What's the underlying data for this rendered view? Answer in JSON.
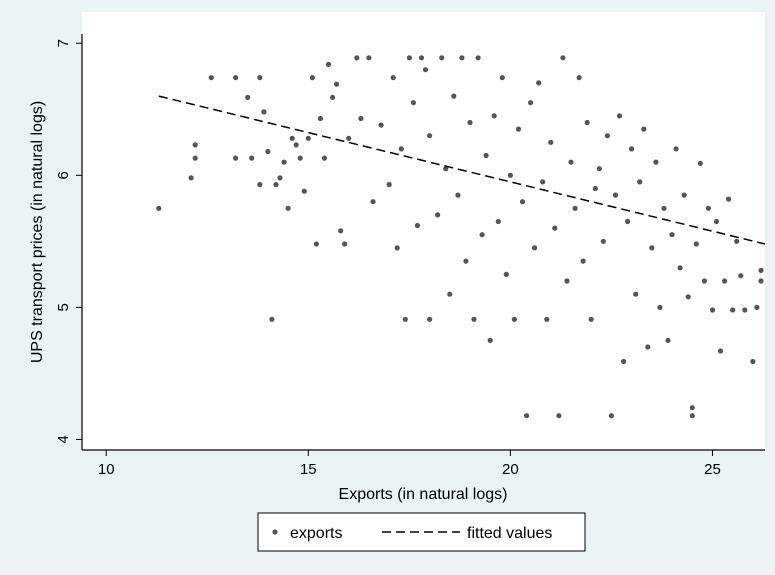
{
  "colors": {
    "outer_background": "#eaf2f3",
    "plot_background": "#ffffff",
    "marker": "#555555",
    "fit_line": "#000000"
  },
  "chart_data": {
    "type": "scatter",
    "title": "",
    "xlabel": "Exports (in natural logs)",
    "ylabel": "UPS transport prices (in natural logs)",
    "xlim": [
      9.4,
      26.3
    ],
    "ylim": [
      3.92,
      7.07
    ],
    "xticks": [
      10,
      15,
      20,
      25
    ],
    "yticks": [
      4,
      5,
      6,
      7
    ],
    "xtick_labels": [
      "10",
      "15",
      "20",
      "25"
    ],
    "ytick_labels": [
      "4",
      "5",
      "6",
      "7"
    ],
    "grid": false,
    "legend_position": "bottom",
    "series": [
      {
        "name": "exports",
        "type": "scatter",
        "marker": "circle",
        "color": "#555555",
        "points": [
          [
            11.3,
            5.75
          ],
          [
            12.1,
            5.98
          ],
          [
            12.2,
            6.13
          ],
          [
            12.2,
            6.23
          ],
          [
            12.6,
            6.74
          ],
          [
            13.2,
            6.13
          ],
          [
            13.2,
            6.74
          ],
          [
            13.5,
            6.59
          ],
          [
            13.6,
            6.13
          ],
          [
            13.8,
            5.93
          ],
          [
            13.8,
            6.74
          ],
          [
            13.9,
            6.48
          ],
          [
            14.0,
            6.18
          ],
          [
            14.1,
            4.91
          ],
          [
            14.2,
            5.93
          ],
          [
            14.3,
            5.98
          ],
          [
            14.4,
            6.1
          ],
          [
            14.5,
            5.75
          ],
          [
            14.6,
            6.28
          ],
          [
            14.7,
            6.23
          ],
          [
            14.8,
            6.13
          ],
          [
            14.9,
            5.88
          ],
          [
            15.0,
            6.28
          ],
          [
            15.1,
            6.74
          ],
          [
            15.2,
            5.48
          ],
          [
            15.3,
            6.43
          ],
          [
            15.4,
            6.13
          ],
          [
            15.5,
            6.84
          ],
          [
            15.6,
            6.59
          ],
          [
            15.7,
            6.69
          ],
          [
            15.8,
            5.58
          ],
          [
            15.9,
            5.48
          ],
          [
            16.0,
            6.28
          ],
          [
            16.2,
            6.89
          ],
          [
            16.3,
            6.43
          ],
          [
            16.5,
            6.89
          ],
          [
            16.6,
            5.8
          ],
          [
            16.8,
            6.38
          ],
          [
            17.0,
            5.93
          ],
          [
            17.1,
            6.74
          ],
          [
            17.2,
            5.45
          ],
          [
            17.3,
            6.2
          ],
          [
            17.4,
            4.91
          ],
          [
            17.5,
            6.89
          ],
          [
            17.6,
            6.55
          ],
          [
            17.7,
            5.62
          ],
          [
            17.8,
            6.89
          ],
          [
            17.9,
            6.8
          ],
          [
            18.0,
            4.91
          ],
          [
            18.0,
            6.3
          ],
          [
            18.2,
            5.7
          ],
          [
            18.3,
            6.89
          ],
          [
            18.4,
            6.05
          ],
          [
            18.5,
            5.1
          ],
          [
            18.6,
            6.6
          ],
          [
            18.7,
            5.85
          ],
          [
            18.8,
            6.89
          ],
          [
            18.9,
            5.35
          ],
          [
            19.0,
            6.4
          ],
          [
            19.1,
            4.91
          ],
          [
            19.2,
            6.89
          ],
          [
            19.3,
            5.55
          ],
          [
            19.4,
            6.15
          ],
          [
            19.5,
            4.75
          ],
          [
            19.6,
            6.45
          ],
          [
            19.7,
            5.65
          ],
          [
            19.8,
            6.74
          ],
          [
            19.9,
            5.25
          ],
          [
            20.0,
            6.0
          ],
          [
            20.1,
            4.91
          ],
          [
            20.2,
            6.35
          ],
          [
            20.3,
            5.8
          ],
          [
            20.4,
            4.18
          ],
          [
            20.5,
            6.55
          ],
          [
            20.6,
            5.45
          ],
          [
            20.7,
            6.7
          ],
          [
            20.8,
            5.95
          ],
          [
            20.9,
            4.91
          ],
          [
            21.0,
            6.25
          ],
          [
            21.1,
            5.6
          ],
          [
            21.2,
            4.18
          ],
          [
            21.3,
            6.89
          ],
          [
            21.4,
            5.2
          ],
          [
            21.5,
            6.1
          ],
          [
            21.6,
            5.75
          ],
          [
            21.7,
            6.74
          ],
          [
            21.8,
            5.35
          ],
          [
            21.9,
            6.4
          ],
          [
            22.0,
            4.91
          ],
          [
            22.1,
            5.9
          ],
          [
            22.2,
            6.05
          ],
          [
            22.3,
            5.5
          ],
          [
            22.4,
            6.3
          ],
          [
            22.5,
            4.18
          ],
          [
            22.6,
            5.85
          ],
          [
            22.7,
            6.45
          ],
          [
            22.8,
            4.59
          ],
          [
            22.9,
            5.65
          ],
          [
            23.0,
            6.2
          ],
          [
            23.1,
            5.1
          ],
          [
            23.2,
            5.95
          ],
          [
            23.3,
            6.35
          ],
          [
            23.4,
            4.7
          ],
          [
            23.5,
            5.45
          ],
          [
            23.6,
            6.1
          ],
          [
            23.7,
            5.0
          ],
          [
            23.8,
            5.75
          ],
          [
            23.9,
            4.75
          ],
          [
            24.0,
            5.55
          ],
          [
            24.1,
            6.2
          ],
          [
            24.2,
            5.3
          ],
          [
            24.3,
            5.85
          ],
          [
            24.4,
            5.08
          ],
          [
            24.5,
            4.24
          ],
          [
            24.5,
            4.18
          ],
          [
            24.6,
            5.48
          ],
          [
            24.7,
            6.09
          ],
          [
            24.8,
            5.2
          ],
          [
            24.9,
            5.75
          ],
          [
            25.0,
            4.98
          ],
          [
            25.1,
            5.65
          ],
          [
            25.2,
            4.67
          ],
          [
            25.3,
            5.2
          ],
          [
            25.4,
            5.82
          ],
          [
            25.5,
            4.98
          ],
          [
            25.6,
            5.5
          ],
          [
            25.7,
            5.24
          ],
          [
            25.8,
            4.98
          ],
          [
            26.0,
            4.59
          ],
          [
            26.1,
            5.0
          ],
          [
            26.2,
            5.28
          ],
          [
            26.2,
            5.2
          ]
        ]
      },
      {
        "name": "fitted values",
        "type": "line",
        "style": "dashed",
        "color": "#000000",
        "points": [
          [
            11.3,
            6.6
          ],
          [
            26.3,
            5.48
          ]
        ]
      }
    ]
  }
}
